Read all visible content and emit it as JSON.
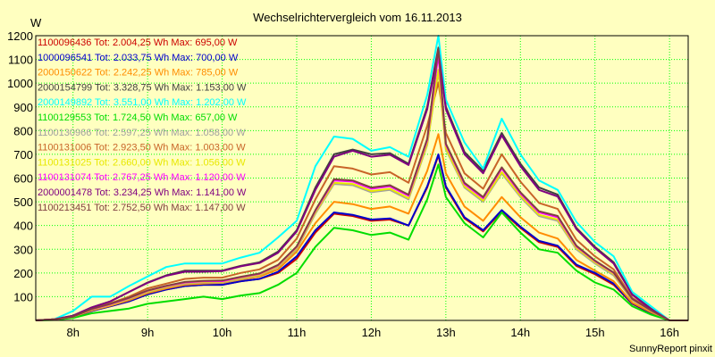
{
  "chart_data": {
    "type": "line",
    "title": "Wechselrichtervergleich vom 16.11.2013",
    "ylabel": "W",
    "xlabel": "",
    "ylim": [
      0,
      1200
    ],
    "yticks": [
      "100",
      "200",
      "300",
      "400",
      "500",
      "600",
      "700",
      "800",
      "900",
      "1000",
      "1100",
      "1200"
    ],
    "xticks": [
      "8h",
      "9h",
      "10h",
      "11h",
      "12h",
      "13h",
      "14h",
      "15h",
      "16h"
    ],
    "xlim": [
      7.5,
      16.25
    ],
    "grid": true,
    "footer": "SunnyReport pinxit",
    "x": [
      7.5,
      7.75,
      8.0,
      8.25,
      8.5,
      8.75,
      9.0,
      9.25,
      9.5,
      9.75,
      10.0,
      10.25,
      10.5,
      10.75,
      11.0,
      11.25,
      11.5,
      11.75,
      12.0,
      12.25,
      12.5,
      12.75,
      12.9,
      13.0,
      13.25,
      13.5,
      13.75,
      14.0,
      14.25,
      14.5,
      14.75,
      15.0,
      15.25,
      15.5,
      15.75,
      16.0,
      16.25
    ],
    "series": [
      {
        "name": "1100096436 Tot: 2.004,25 Wh Max: 695,00 W",
        "color": "#cc0000",
        "values": [
          0,
          5,
          15,
          40,
          60,
          80,
          110,
          130,
          145,
          150,
          150,
          165,
          175,
          200,
          260,
          370,
          450,
          440,
          420,
          425,
          400,
          560,
          695,
          560,
          430,
          375,
          460,
          390,
          330,
          310,
          230,
          195,
          150,
          70,
          30,
          0,
          0
        ]
      },
      {
        "name": "1000096541 Tot: 2.033,75 Wh Max: 700,00 W",
        "color": "#0000cc",
        "values": [
          0,
          5,
          15,
          40,
          60,
          80,
          110,
          130,
          145,
          150,
          150,
          165,
          175,
          205,
          270,
          380,
          455,
          445,
          425,
          430,
          400,
          565,
          700,
          565,
          435,
          380,
          465,
          395,
          335,
          315,
          235,
          200,
          155,
          72,
          32,
          0,
          0
        ]
      },
      {
        "name": "2000150622 Tot: 2.242,25 Wh Max: 785,00 W",
        "color": "#ff8c00",
        "values": [
          0,
          5,
          15,
          42,
          62,
          85,
          115,
          135,
          150,
          155,
          158,
          172,
          185,
          215,
          290,
          410,
          500,
          490,
          470,
          480,
          450,
          630,
          785,
          620,
          480,
          420,
          520,
          435,
          370,
          345,
          255,
          210,
          165,
          75,
          35,
          0,
          0
        ]
      },
      {
        "name": "2000154799 Tot: 3.328,75 Wh Max: 1.153,00 W",
        "color": "#404040",
        "values": [
          0,
          5,
          20,
          55,
          80,
          120,
          160,
          190,
          210,
          210,
          210,
          230,
          245,
          290,
          380,
          560,
          700,
          720,
          700,
          705,
          660,
          900,
          1150,
          900,
          710,
          630,
          790,
          660,
          560,
          530,
          390,
          310,
          245,
          110,
          50,
          0,
          0
        ]
      },
      {
        "name": "2000149892 Tot: 3.551,00 Wh Max: 1.202,00 W",
        "color": "#00ffff",
        "values": [
          0,
          5,
          40,
          100,
          100,
          145,
          185,
          225,
          240,
          240,
          240,
          265,
          285,
          350,
          420,
          650,
          775,
          765,
          715,
          730,
          690,
          950,
          1200,
          930,
          750,
          640,
          850,
          700,
          590,
          550,
          415,
          330,
          270,
          120,
          60,
          0,
          0
        ]
      },
      {
        "name": "1100129553 Tot: 1.724,50 Wh Max: 657,00 W",
        "color": "#00dd00",
        "values": [
          0,
          2,
          10,
          30,
          40,
          50,
          70,
          80,
          90,
          100,
          90,
          105,
          115,
          150,
          200,
          310,
          390,
          380,
          360,
          370,
          340,
          510,
          657,
          520,
          410,
          350,
          455,
          370,
          300,
          285,
          210,
          160,
          130,
          60,
          25,
          0,
          0
        ]
      },
      {
        "name": "1100130966 Tot: 2.597,25 Wh Max: 1.058,00 W",
        "color": "#a0a0a0",
        "values": [
          0,
          4,
          15,
          45,
          65,
          90,
          120,
          140,
          155,
          160,
          160,
          175,
          190,
          225,
          300,
          450,
          575,
          570,
          540,
          550,
          510,
          740,
          1050,
          720,
          560,
          500,
          620,
          520,
          440,
          420,
          300,
          240,
          190,
          85,
          40,
          0,
          0
        ]
      },
      {
        "name": "1100131006 Tot: 2.923,50 Wh Max: 1.003,00 W",
        "color": "#c86428",
        "values": [
          0,
          5,
          18,
          50,
          72,
          100,
          135,
          155,
          175,
          180,
          180,
          200,
          215,
          255,
          345,
          510,
          650,
          640,
          615,
          625,
          580,
          820,
          1003,
          790,
          620,
          555,
          700,
          585,
          495,
          470,
          340,
          270,
          215,
          95,
          45,
          0,
          0
        ]
      },
      {
        "name": "1100131025 Tot: 2.660,00 Wh Max: 1.056,00 W",
        "color": "#e8e800",
        "values": [
          0,
          4,
          15,
          45,
          66,
          92,
          122,
          142,
          158,
          162,
          162,
          178,
          192,
          228,
          305,
          455,
          580,
          575,
          545,
          555,
          515,
          745,
          1056,
          725,
          565,
          505,
          625,
          525,
          445,
          425,
          305,
          245,
          195,
          87,
          41,
          0,
          0
        ]
      },
      {
        "name": "1100131074 Tot: 2.767,25 Wh Max: 1.120,00 W",
        "color": "#ff00ff",
        "values": [
          0,
          4,
          16,
          47,
          68,
          94,
          125,
          145,
          160,
          165,
          165,
          182,
          196,
          232,
          310,
          462,
          590,
          585,
          555,
          565,
          525,
          760,
          1120,
          740,
          575,
          515,
          640,
          535,
          455,
          435,
          312,
          250,
          200,
          90,
          42,
          0,
          0
        ]
      },
      {
        "name": "2000001478 Tot: 3.234,25 Wh Max: 1.141,00 W",
        "color": "#800080",
        "values": [
          0,
          5,
          20,
          55,
          80,
          120,
          158,
          188,
          205,
          205,
          208,
          228,
          242,
          285,
          375,
          550,
          690,
          715,
          690,
          698,
          655,
          890,
          1141,
          890,
          700,
          620,
          780,
          650,
          550,
          522,
          385,
          305,
          240,
          108,
          48,
          0,
          0
        ]
      },
      {
        "name": "1100213451 Tot: 2.752,50 Wh Max: 1.147,00 W",
        "color": "#804040",
        "values": [
          0,
          4,
          16,
          48,
          70,
          95,
          126,
          146,
          162,
          167,
          168,
          184,
          198,
          234,
          312,
          465,
          595,
          590,
          560,
          570,
          530,
          765,
          1147,
          745,
          580,
          520,
          645,
          540,
          460,
          440,
          315,
          252,
          202,
          91,
          43,
          0,
          0
        ]
      }
    ]
  }
}
